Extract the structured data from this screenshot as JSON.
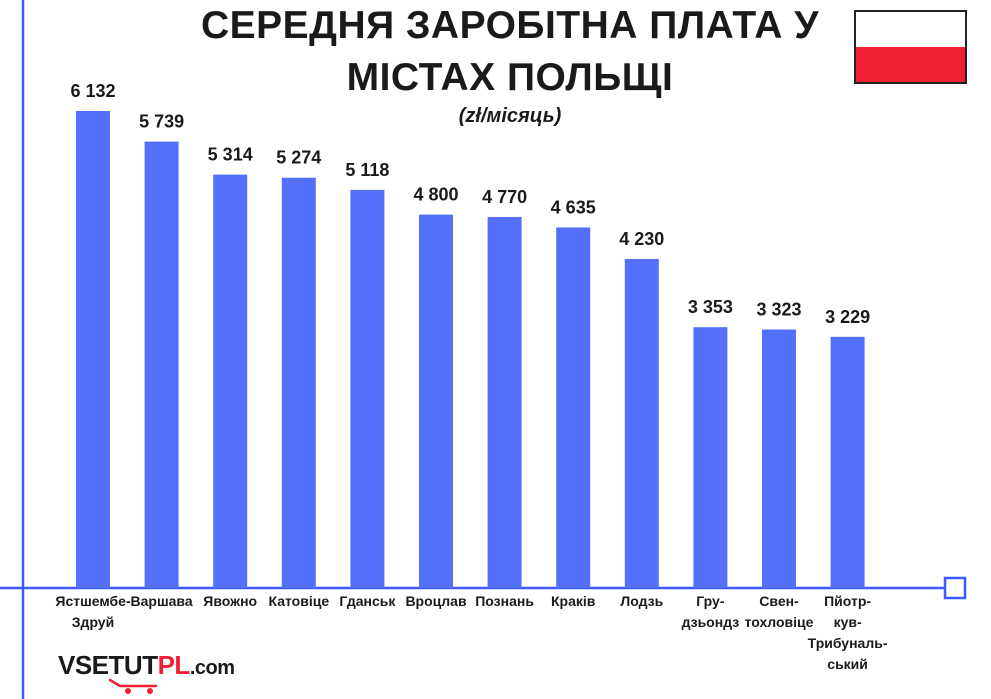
{
  "chart_data": {
    "type": "bar",
    "title_lines": [
      "СЕРЕДНЯ ЗАРОБІТНА ПЛАТА У",
      "МІСТАХ ПОЛЬЩІ"
    ],
    "subtitle": "(zł/місяць)",
    "categories": [
      [
        "Ястшембе-",
        "Здруй"
      ],
      [
        "Варшава"
      ],
      [
        "Явожно"
      ],
      [
        "Катовіце"
      ],
      [
        "Гданськ"
      ],
      [
        "Вроцлав"
      ],
      [
        "Познань"
      ],
      [
        "Краків"
      ],
      [
        "Лодзь"
      ],
      [
        "Гру-",
        "дзьондз"
      ],
      [
        "Свен-",
        "тохловіце"
      ],
      [
        "Пйотр-",
        "кув-",
        "Трибуналь-",
        "ський"
      ]
    ],
    "values": [
      6132,
      5739,
      5314,
      5274,
      5118,
      4800,
      4770,
      4635,
      4230,
      3353,
      3323,
      3229
    ],
    "value_labels": [
      "6 132",
      "5 739",
      "5 314",
      "5 274",
      "5 118",
      "4 800",
      "4 770",
      "4 635",
      "4 230",
      "3 353",
      "3 323",
      "3 229"
    ],
    "ylim": [
      0,
      6132
    ],
    "grid": false,
    "legend": "none",
    "bar_color": "#5470fb",
    "axis_color": "#3b5bff",
    "text_color": "#1a1a1a"
  },
  "flag": {
    "top_color": "#ffffff",
    "bottom_color": "#ef2034"
  },
  "logo": {
    "part1": "VSE",
    "part2": "TUT",
    "part3": "PL",
    "part4": ".com"
  }
}
